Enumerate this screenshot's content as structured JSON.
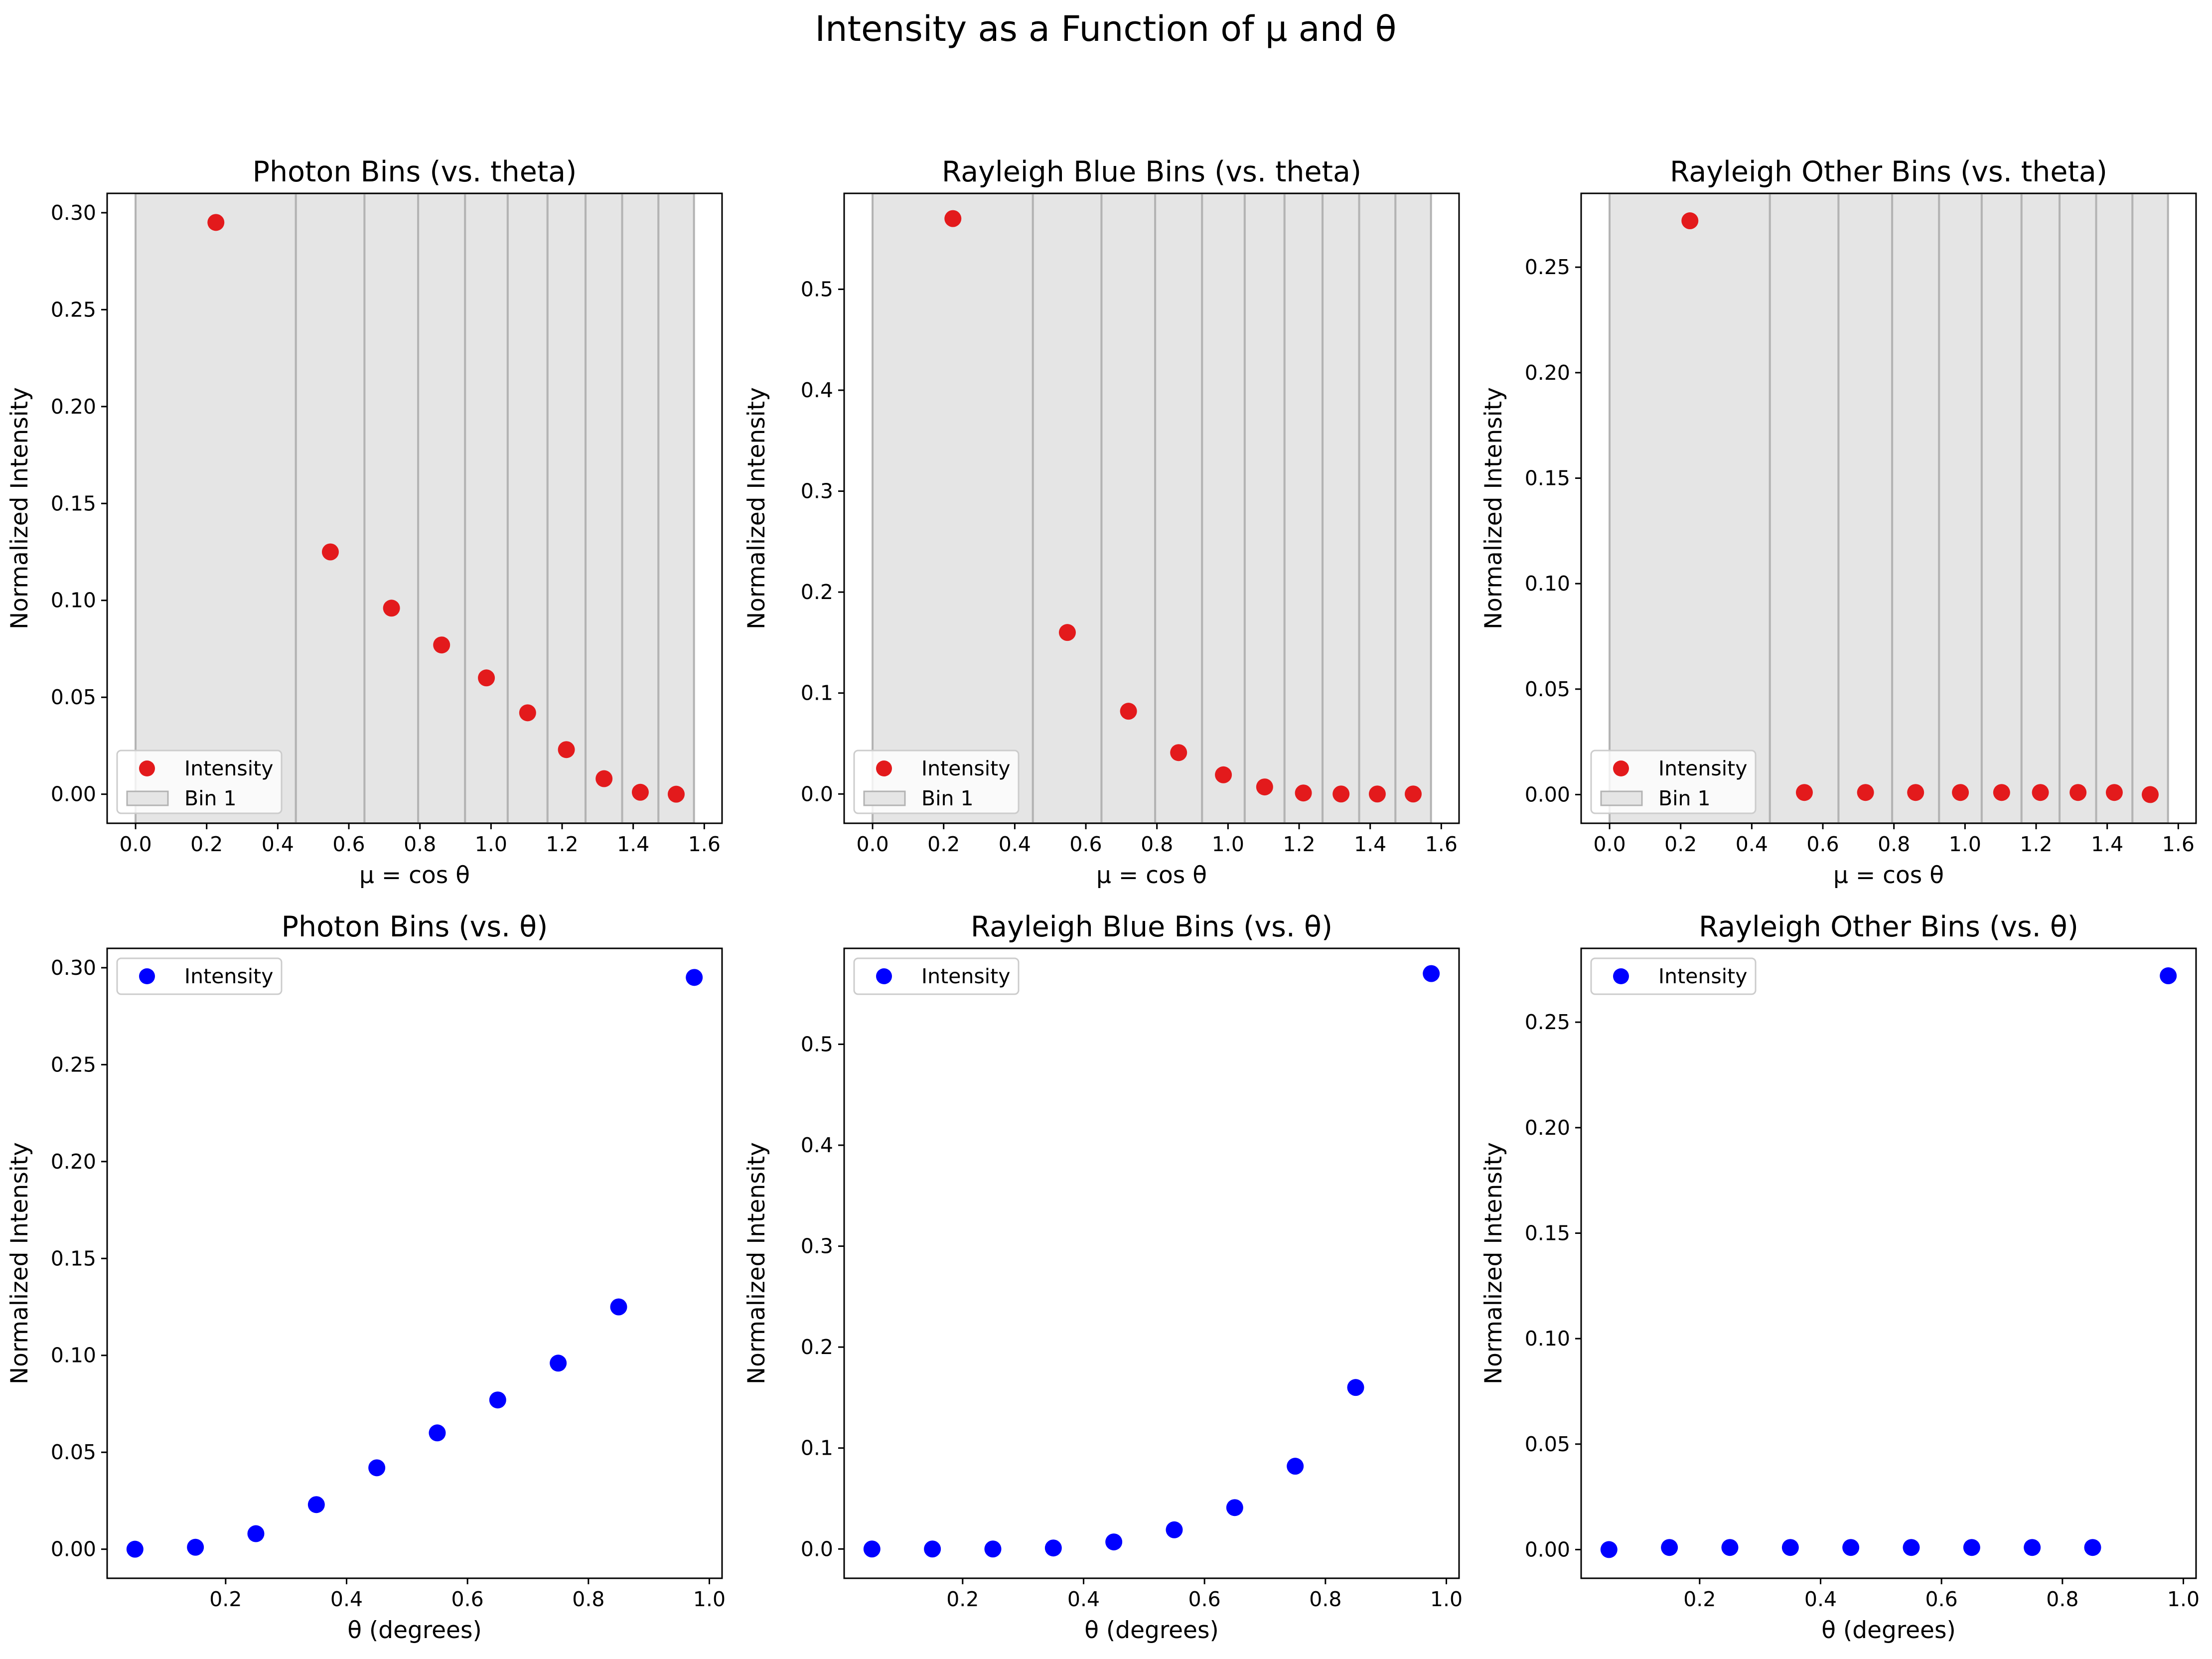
{
  "figure": {
    "suptitle": "Intensity as a Function of μ and θ"
  },
  "chart_data": [
    {
      "type": "scatter",
      "title": "Photon Bins (vs. theta)",
      "xlabel": "μ = cos θ",
      "ylabel": "Normalized Intensity",
      "xlim": [
        -0.08,
        1.65
      ],
      "ylim": [
        -0.015,
        0.31
      ],
      "xticks": [
        0.0,
        0.2,
        0.4,
        0.6,
        0.8,
        1.0,
        1.2,
        1.4,
        1.6
      ],
      "xtick_labels": [
        "0.0",
        "0.2",
        "0.4",
        "0.6",
        "0.8",
        "1.0",
        "1.2",
        "1.4",
        "1.6"
      ],
      "yticks": [
        0.0,
        0.05,
        0.1,
        0.15,
        0.2,
        0.25,
        0.3
      ],
      "ytick_labels": [
        "0.00",
        "0.05",
        "0.10",
        "0.15",
        "0.20",
        "0.25",
        "0.30"
      ],
      "bin_edges": [
        0.0,
        0.451,
        0.644,
        0.795,
        0.927,
        1.047,
        1.159,
        1.266,
        1.369,
        1.471,
        1.571
      ],
      "series": [
        {
          "name": "Intensity",
          "color": "#e31a1c",
          "x": [
            0.226,
            0.548,
            0.72,
            0.861,
            0.987,
            1.103,
            1.212,
            1.318,
            1.42,
            1.521
          ],
          "y": [
            0.295,
            0.125,
            0.096,
            0.077,
            0.06,
            0.042,
            0.023,
            0.008,
            0.001,
            0.0
          ]
        }
      ],
      "legend": {
        "position": "lower-left",
        "entries": [
          "Intensity",
          "Bin 1"
        ]
      },
      "grid": false
    },
    {
      "type": "scatter",
      "title": "Rayleigh Blue Bins (vs. theta)",
      "xlabel": "μ = cos θ",
      "ylabel": "Normalized Intensity",
      "xlim": [
        -0.08,
        1.65
      ],
      "ylim": [
        -0.029,
        0.595
      ],
      "xticks": [
        0.0,
        0.2,
        0.4,
        0.6,
        0.8,
        1.0,
        1.2,
        1.4,
        1.6
      ],
      "xtick_labels": [
        "0.0",
        "0.2",
        "0.4",
        "0.6",
        "0.8",
        "1.0",
        "1.2",
        "1.4",
        "1.6"
      ],
      "yticks": [
        0.0,
        0.1,
        0.2,
        0.3,
        0.4,
        0.5
      ],
      "ytick_labels": [
        "0.0",
        "0.1",
        "0.2",
        "0.3",
        "0.4",
        "0.5"
      ],
      "bin_edges": [
        0.0,
        0.451,
        0.644,
        0.795,
        0.927,
        1.047,
        1.159,
        1.266,
        1.369,
        1.471,
        1.571
      ],
      "series": [
        {
          "name": "Intensity",
          "color": "#e31a1c",
          "x": [
            0.226,
            0.548,
            0.72,
            0.861,
            0.987,
            1.103,
            1.212,
            1.318,
            1.42,
            1.521
          ],
          "y": [
            0.57,
            0.16,
            0.082,
            0.041,
            0.019,
            0.007,
            0.001,
            0.0,
            0.0,
            0.0
          ]
        }
      ],
      "legend": {
        "position": "lower-left",
        "entries": [
          "Intensity",
          "Bin 1"
        ]
      },
      "grid": false
    },
    {
      "type": "scatter",
      "title": "Rayleigh Other Bins (vs. theta)",
      "xlabel": "μ = cos θ",
      "ylabel": "Normalized Intensity",
      "xlim": [
        -0.08,
        1.65
      ],
      "ylim": [
        -0.0136,
        0.285
      ],
      "xticks": [
        0.0,
        0.2,
        0.4,
        0.6,
        0.8,
        1.0,
        1.2,
        1.4,
        1.6
      ],
      "xtick_labels": [
        "0.0",
        "0.2",
        "0.4",
        "0.6",
        "0.8",
        "1.0",
        "1.2",
        "1.4",
        "1.6"
      ],
      "yticks": [
        0.0,
        0.05,
        0.1,
        0.15,
        0.2,
        0.25
      ],
      "ytick_labels": [
        "0.00",
        "0.05",
        "0.10",
        "0.15",
        "0.20",
        "0.25"
      ],
      "bin_edges": [
        0.0,
        0.451,
        0.644,
        0.795,
        0.927,
        1.047,
        1.159,
        1.266,
        1.369,
        1.471,
        1.571
      ],
      "series": [
        {
          "name": "Intensity",
          "color": "#e31a1c",
          "x": [
            0.226,
            0.548,
            0.72,
            0.861,
            0.987,
            1.103,
            1.212,
            1.318,
            1.42,
            1.521
          ],
          "y": [
            0.272,
            0.001,
            0.001,
            0.001,
            0.001,
            0.001,
            0.001,
            0.001,
            0.001,
            0.0
          ]
        }
      ],
      "legend": {
        "position": "lower-left",
        "entries": [
          "Intensity",
          "Bin 1"
        ]
      },
      "grid": false
    },
    {
      "type": "scatter",
      "title": "Photon Bins (vs. θ)",
      "xlabel": "θ (degrees)",
      "ylabel": "Normalized Intensity",
      "xlim": [
        0.004,
        1.021
      ],
      "ylim": [
        -0.015,
        0.31
      ],
      "xticks": [
        0.2,
        0.4,
        0.6,
        0.8,
        1.0
      ],
      "xtick_labels": [
        "0.2",
        "0.4",
        "0.6",
        "0.8",
        "1.0"
      ],
      "yticks": [
        0.0,
        0.05,
        0.1,
        0.15,
        0.2,
        0.25,
        0.3
      ],
      "ytick_labels": [
        "0.00",
        "0.05",
        "0.10",
        "0.15",
        "0.20",
        "0.25",
        "0.30"
      ],
      "series": [
        {
          "name": "Intensity",
          "color": "#0000ff",
          "x": [
            0.05,
            0.15,
            0.25,
            0.35,
            0.45,
            0.55,
            0.65,
            0.75,
            0.85,
            0.975
          ],
          "y": [
            0.0,
            0.001,
            0.008,
            0.023,
            0.042,
            0.06,
            0.077,
            0.096,
            0.125,
            0.295
          ]
        }
      ],
      "legend": {
        "position": "top-left",
        "entries": [
          "Intensity"
        ]
      },
      "grid": false
    },
    {
      "type": "scatter",
      "title": "Rayleigh Blue Bins (vs. θ)",
      "xlabel": "θ (degrees)",
      "ylabel": "Normalized Intensity",
      "xlim": [
        0.004,
        1.021
      ],
      "ylim": [
        -0.029,
        0.595
      ],
      "xticks": [
        0.2,
        0.4,
        0.6,
        0.8,
        1.0
      ],
      "xtick_labels": [
        "0.2",
        "0.4",
        "0.6",
        "0.8",
        "1.0"
      ],
      "yticks": [
        0.0,
        0.1,
        0.2,
        0.3,
        0.4,
        0.5
      ],
      "ytick_labels": [
        "0.0",
        "0.1",
        "0.2",
        "0.3",
        "0.4",
        "0.5"
      ],
      "series": [
        {
          "name": "Intensity",
          "color": "#0000ff",
          "x": [
            0.05,
            0.15,
            0.25,
            0.35,
            0.45,
            0.55,
            0.65,
            0.75,
            0.85,
            0.975
          ],
          "y": [
            0.0,
            0.0,
            0.0,
            0.001,
            0.007,
            0.019,
            0.041,
            0.082,
            0.16,
            0.57
          ]
        }
      ],
      "legend": {
        "position": "top-left",
        "entries": [
          "Intensity"
        ]
      },
      "grid": false
    },
    {
      "type": "scatter",
      "title": "Rayleigh Other Bins (vs. θ)",
      "xlabel": "θ (degrees)",
      "ylabel": "Normalized Intensity",
      "xlim": [
        0.004,
        1.021
      ],
      "ylim": [
        -0.0136,
        0.285
      ],
      "xticks": [
        0.2,
        0.4,
        0.6,
        0.8,
        1.0
      ],
      "xtick_labels": [
        "0.2",
        "0.4",
        "0.6",
        "0.8",
        "1.0"
      ],
      "yticks": [
        0.0,
        0.05,
        0.1,
        0.15,
        0.2,
        0.25
      ],
      "ytick_labels": [
        "0.00",
        "0.05",
        "0.10",
        "0.15",
        "0.20",
        "0.25"
      ],
      "series": [
        {
          "name": "Intensity",
          "color": "#0000ff",
          "x": [
            0.05,
            0.15,
            0.25,
            0.35,
            0.45,
            0.55,
            0.65,
            0.75,
            0.85,
            0.975
          ],
          "y": [
            0.0,
            0.001,
            0.001,
            0.001,
            0.001,
            0.001,
            0.001,
            0.001,
            0.001,
            0.272
          ]
        }
      ],
      "legend": {
        "position": "top-left",
        "entries": [
          "Intensity"
        ]
      },
      "grid": false
    }
  ],
  "colors": {
    "bin_fill": "#e5e5e5",
    "bin_edge": "#b3b3b3",
    "axis": "#000000",
    "legend_border": "#cccccc"
  }
}
